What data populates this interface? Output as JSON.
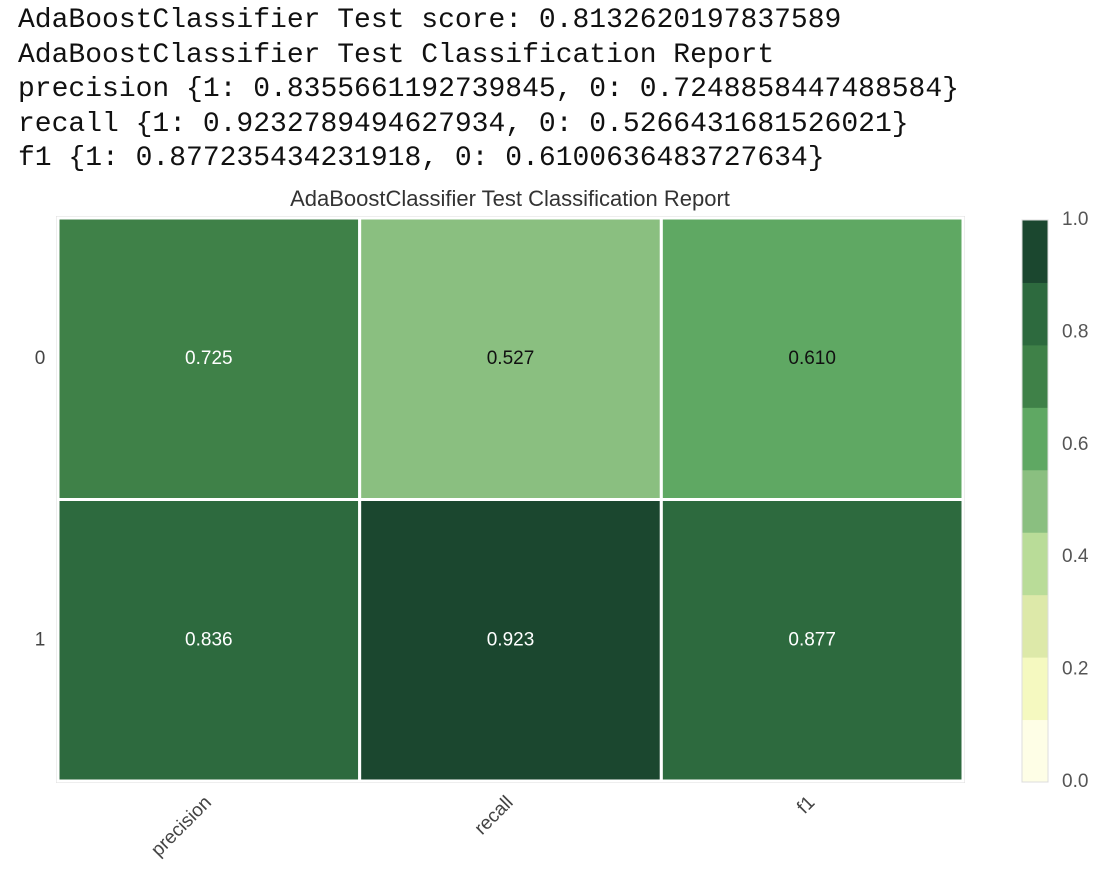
{
  "console": [
    "AdaBoostClassifier Test score: 0.8132620197837589",
    "AdaBoostClassifier Test Classification Report",
    "precision {1: 0.8355661192739845, 0: 0.7248858447488584}",
    "recall {1: 0.9232789494627934, 0: 0.5266431681526021}",
    "f1 {1: 0.877235434231918, 0: 0.6100636483727634}"
  ],
  "chart_data": {
    "type": "heatmap",
    "title": "AdaBoostClassifier Test Classification Report",
    "x_categories": [
      "precision",
      "recall",
      "f1"
    ],
    "y_categories": [
      "0",
      "1"
    ],
    "values": [
      [
        0.725,
        0.527,
        0.61
      ],
      [
        0.836,
        0.923,
        0.877
      ]
    ],
    "value_labels": [
      [
        "0.725",
        "0.527",
        "0.610"
      ],
      [
        "0.836",
        "0.923",
        "0.877"
      ]
    ],
    "clim": [
      0,
      1
    ],
    "cticks": [
      {
        "value": 0,
        "label": "0.0"
      },
      0.2,
      0.4,
      0.6,
      0.8,
      {
        "value": 1,
        "label": "1.0"
      }
    ],
    "colors": [
      "#fefee6",
      "#f5f9c0",
      "#dde9a9",
      "#b9dc98",
      "#8abf80",
      "#5fa863",
      "#3f8148",
      "#2d6a3e",
      "#1b472f"
    ]
  }
}
